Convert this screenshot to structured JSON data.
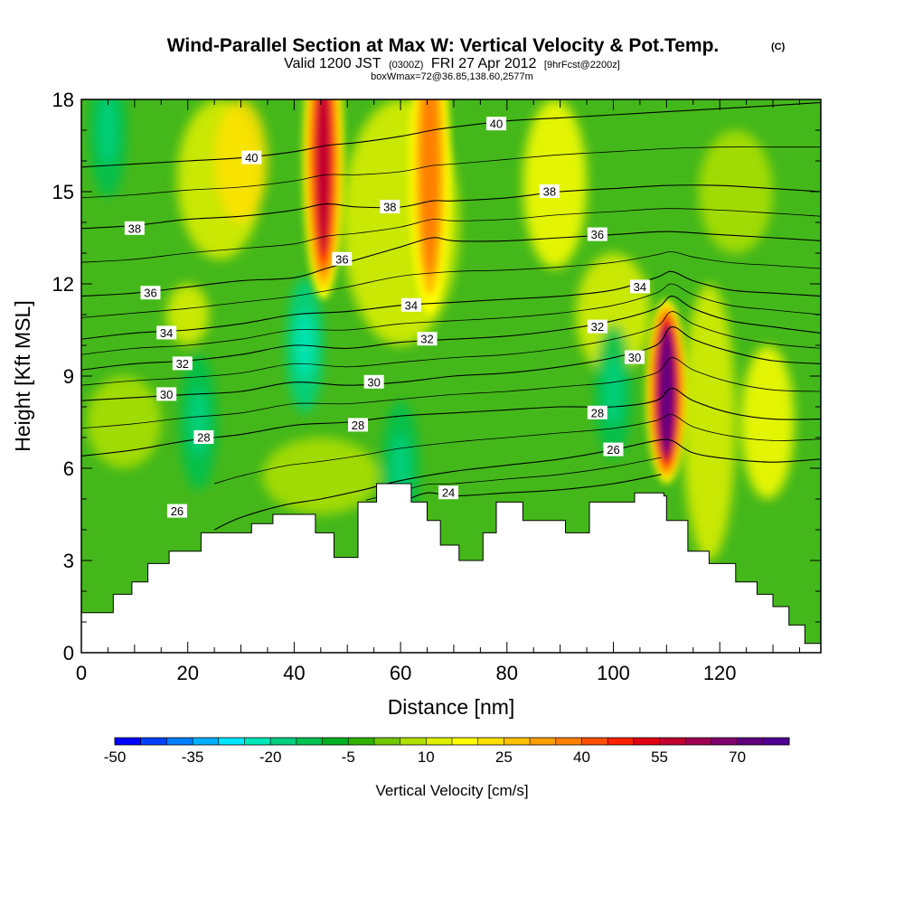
{
  "chart_data": {
    "type": "heatmap",
    "title": "Wind-Parallel Section at Max W: Vertical Velocity & Pot.Temp.",
    "title_mark": "(C)",
    "subtitle": {
      "prefix": "Valid 1200 JST",
      "utc": "(0300Z)",
      "date": "FRI 27 Apr 2012",
      "forecast": "[9hrFcst@2200z]"
    },
    "subtitle2": "boxWmax=72@36.85,138.60,2577m",
    "xlabel": "Distance [nm]",
    "ylabel": "Height [Kft MSL]",
    "xlim": [
      0,
      139
    ],
    "ylim": [
      0,
      18
    ],
    "x_ticks": [
      0,
      20,
      40,
      60,
      80,
      100,
      120
    ],
    "y_ticks": [
      0,
      3,
      6,
      9,
      12,
      15,
      18
    ],
    "colorbar": {
      "title": "Vertical Velocity [cm/s]",
      "min": -50,
      "max": 80,
      "step": 5,
      "tick_labels": [
        "-50",
        "-35",
        "-20",
        "-5",
        "10",
        "25",
        "40",
        "55",
        "70"
      ],
      "colors": [
        "#0000ff",
        "#0040ff",
        "#0080ff",
        "#00b0ff",
        "#00e6ff",
        "#00e6b8",
        "#00d080",
        "#00c050",
        "#00b020",
        "#30b000",
        "#70c800",
        "#b0e000",
        "#e0f000",
        "#ffff00",
        "#ffe000",
        "#ffc000",
        "#ffa000",
        "#ff8000",
        "#ff5000",
        "#ff2000",
        "#e00010",
        "#c00030",
        "#a00050",
        "#800070",
        "#600080",
        "#500090"
      ]
    },
    "updrafts": [
      {
        "x": 45.5,
        "y_bottom": 12.0,
        "y_top": 18.0,
        "peak_cm_s": 55
      },
      {
        "x": 65.5,
        "y_bottom": 11.5,
        "y_top": 18.0,
        "peak_cm_s": 40
      },
      {
        "x": 110.0,
        "y_bottom": 5.5,
        "y_top": 11.5,
        "peak_cm_s": 72
      }
    ],
    "downdrafts": [
      {
        "x": 42.0,
        "y_center": 10.0,
        "min_cm_s": -20
      },
      {
        "x": 22.0,
        "y_center": 7.5,
        "min_cm_s": -15
      },
      {
        "x": 60.0,
        "y_center": 6.0,
        "min_cm_s": -15
      },
      {
        "x": 100.0,
        "y_center": 8.5,
        "min_cm_s": -15
      },
      {
        "x": 5.0,
        "y_center": 17.0,
        "min_cm_s": -15
      }
    ],
    "terrain_steps": [
      {
        "x": 0,
        "h": 1.3
      },
      {
        "x": 6,
        "h": 1.9
      },
      {
        "x": 9.5,
        "h": 2.3
      },
      {
        "x": 12.5,
        "h": 2.9
      },
      {
        "x": 16.5,
        "h": 3.3
      },
      {
        "x": 22.5,
        "h": 3.9
      },
      {
        "x": 32,
        "h": 4.2
      },
      {
        "x": 36,
        "h": 4.5
      },
      {
        "x": 44,
        "h": 3.9
      },
      {
        "x": 47.5,
        "h": 3.1
      },
      {
        "x": 52,
        "h": 4.9
      },
      {
        "x": 55.5,
        "h": 5.5
      },
      {
        "x": 62,
        "h": 4.9
      },
      {
        "x": 65,
        "h": 4.3
      },
      {
        "x": 67.5,
        "h": 3.5
      },
      {
        "x": 71,
        "h": 3.0
      },
      {
        "x": 75.5,
        "h": 3.9
      },
      {
        "x": 78,
        "h": 4.9
      },
      {
        "x": 83,
        "h": 4.3
      },
      {
        "x": 91,
        "h": 3.9
      },
      {
        "x": 95.5,
        "h": 4.9
      },
      {
        "x": 104,
        "h": 5.2
      },
      {
        "x": 109.5,
        "h": 5.1
      },
      {
        "x": 110,
        "h": 4.3
      },
      {
        "x": 114,
        "h": 3.3
      },
      {
        "x": 118,
        "h": 2.9
      },
      {
        "x": 123,
        "h": 2.3
      },
      {
        "x": 127,
        "h": 1.9
      },
      {
        "x": 130,
        "h": 1.5
      },
      {
        "x": 133,
        "h": 0.9
      },
      {
        "x": 136,
        "h": 0.3
      }
    ],
    "isentropes": [
      {
        "theta": 24,
        "pts": [
          [
            53.5,
            4.6
          ],
          [
            60,
            4.9
          ],
          [
            65,
            5.2
          ],
          [
            70,
            5.1
          ],
          [
            80,
            5.2
          ],
          [
            90,
            5.3
          ],
          [
            100,
            5.5
          ],
          [
            109,
            5.8
          ]
        ]
      },
      {
        "theta": 26,
        "pts": [
          [
            25,
            4.0
          ],
          [
            30,
            4.4
          ],
          [
            38,
            4.8
          ],
          [
            45,
            5.0
          ],
          [
            53,
            5.3
          ],
          [
            60,
            5.6
          ],
          [
            70,
            5.9
          ],
          [
            80,
            6.1
          ],
          [
            90,
            6.3
          ],
          [
            100,
            6.6
          ],
          [
            108,
            6.9
          ],
          [
            111,
            6.9
          ],
          [
            115,
            6.5
          ],
          [
            122,
            6.3
          ],
          [
            130,
            6.2
          ],
          [
            139,
            6.3
          ]
        ]
      },
      {
        "theta": 28,
        "pts": [
          [
            0,
            6.4
          ],
          [
            10,
            6.6
          ],
          [
            20,
            6.9
          ],
          [
            30,
            7.1
          ],
          [
            40,
            7.4
          ],
          [
            50,
            7.5
          ],
          [
            60,
            7.7
          ],
          [
            70,
            7.8
          ],
          [
            80,
            7.9
          ],
          [
            90,
            8.0
          ],
          [
            100,
            8.0
          ],
          [
            108,
            8.2
          ],
          [
            111,
            8.6
          ],
          [
            115,
            8.2
          ],
          [
            122,
            7.8
          ],
          [
            130,
            7.6
          ],
          [
            139,
            7.6
          ]
        ]
      },
      {
        "theta": 30,
        "pts": [
          [
            0,
            8.2
          ],
          [
            10,
            8.3
          ],
          [
            20,
            8.4
          ],
          [
            30,
            8.5
          ],
          [
            40,
            8.8
          ],
          [
            50,
            8.7
          ],
          [
            60,
            8.8
          ],
          [
            70,
            9.0
          ],
          [
            80,
            9.1
          ],
          [
            90,
            9.3
          ],
          [
            100,
            9.6
          ],
          [
            108,
            10.0
          ],
          [
            111,
            10.6
          ],
          [
            115,
            10.2
          ],
          [
            122,
            9.8
          ],
          [
            130,
            9.5
          ],
          [
            139,
            9.4
          ]
        ]
      },
      {
        "theta": 32,
        "pts": [
          [
            0,
            9.2
          ],
          [
            10,
            9.4
          ],
          [
            20,
            9.5
          ],
          [
            30,
            9.7
          ],
          [
            40,
            10.0
          ],
          [
            50,
            9.9
          ],
          [
            60,
            10.1
          ],
          [
            70,
            10.2
          ],
          [
            80,
            10.3
          ],
          [
            90,
            10.5
          ],
          [
            100,
            10.8
          ],
          [
            108,
            11.2
          ],
          [
            111,
            11.6
          ],
          [
            115,
            11.2
          ],
          [
            122,
            10.8
          ],
          [
            130,
            10.6
          ],
          [
            139,
            10.4
          ]
        ]
      },
      {
        "theta": 34,
        "pts": [
          [
            0,
            10.2
          ],
          [
            10,
            10.4
          ],
          [
            20,
            10.5
          ],
          [
            30,
            10.7
          ],
          [
            40,
            11.0
          ],
          [
            50,
            11.1
          ],
          [
            60,
            11.3
          ],
          [
            70,
            11.4
          ],
          [
            80,
            11.5
          ],
          [
            90,
            11.6
          ],
          [
            100,
            11.8
          ],
          [
            108,
            12.2
          ],
          [
            111,
            12.4
          ],
          [
            115,
            12.1
          ],
          [
            122,
            11.8
          ],
          [
            130,
            11.7
          ],
          [
            139,
            11.6
          ]
        ]
      },
      {
        "theta": 36,
        "pts": [
          [
            0,
            11.6
          ],
          [
            10,
            11.7
          ],
          [
            20,
            11.9
          ],
          [
            30,
            12.1
          ],
          [
            40,
            12.2
          ],
          [
            46,
            12.5
          ],
          [
            52,
            12.8
          ],
          [
            60,
            13.2
          ],
          [
            66,
            13.5
          ],
          [
            70,
            13.4
          ],
          [
            80,
            13.4
          ],
          [
            90,
            13.5
          ],
          [
            100,
            13.6
          ],
          [
            110,
            13.7
          ],
          [
            120,
            13.6
          ],
          [
            130,
            13.5
          ],
          [
            139,
            13.4
          ]
        ]
      },
      {
        "theta": 38,
        "pts": [
          [
            0,
            13.8
          ],
          [
            10,
            13.9
          ],
          [
            20,
            14.1
          ],
          [
            30,
            14.2
          ],
          [
            40,
            14.4
          ],
          [
            46,
            14.6
          ],
          [
            52,
            14.5
          ],
          [
            60,
            14.5
          ],
          [
            66,
            14.7
          ],
          [
            70,
            14.7
          ],
          [
            80,
            14.8
          ],
          [
            90,
            15.0
          ],
          [
            100,
            15.1
          ],
          [
            110,
            15.2
          ],
          [
            120,
            15.2
          ],
          [
            130,
            15.1
          ],
          [
            139,
            15.0
          ]
        ]
      },
      {
        "theta": 40,
        "pts": [
          [
            0,
            15.8
          ],
          [
            10,
            15.9
          ],
          [
            20,
            16.0
          ],
          [
            30,
            16.1
          ],
          [
            40,
            16.3
          ],
          [
            46,
            16.5
          ],
          [
            52,
            16.6
          ],
          [
            60,
            16.8
          ],
          [
            66,
            17.0
          ],
          [
            70,
            17.1
          ],
          [
            80,
            17.3
          ],
          [
            90,
            17.4
          ],
          [
            100,
            17.5
          ],
          [
            110,
            17.6
          ],
          [
            120,
            17.7
          ],
          [
            130,
            17.8
          ],
          [
            139,
            17.9
          ]
        ]
      }
    ],
    "contour_labels": [
      {
        "text": "40",
        "x": 32,
        "y": 16.1
      },
      {
        "text": "40",
        "x": 78,
        "y": 17.2
      },
      {
        "text": "38",
        "x": 88,
        "y": 15.0
      },
      {
        "text": "38",
        "x": 58,
        "y": 14.5
      },
      {
        "text": "38",
        "x": 10,
        "y": 13.8
      },
      {
        "text": "36",
        "x": 97,
        "y": 13.6
      },
      {
        "text": "36",
        "x": 49,
        "y": 12.8
      },
      {
        "text": "36",
        "x": 13,
        "y": 11.7
      },
      {
        "text": "34",
        "x": 105,
        "y": 11.9
      },
      {
        "text": "34",
        "x": 62,
        "y": 11.3
      },
      {
        "text": "34",
        "x": 16,
        "y": 10.4
      },
      {
        "text": "32",
        "x": 97,
        "y": 10.6
      },
      {
        "text": "32",
        "x": 65,
        "y": 10.2
      },
      {
        "text": "32",
        "x": 19,
        "y": 9.4
      },
      {
        "text": "30",
        "x": 104,
        "y": 9.6
      },
      {
        "text": "30",
        "x": 55,
        "y": 8.8
      },
      {
        "text": "30",
        "x": 16,
        "y": 8.4
      },
      {
        "text": "28",
        "x": 97,
        "y": 7.8
      },
      {
        "text": "28",
        "x": 52,
        "y": 7.4
      },
      {
        "text": "28",
        "x": 23,
        "y": 7.0
      },
      {
        "text": "26",
        "x": 100,
        "y": 6.6
      },
      {
        "text": "26",
        "x": 18,
        "y": 4.6
      },
      {
        "text": "24",
        "x": 69,
        "y": 5.2
      }
    ]
  }
}
